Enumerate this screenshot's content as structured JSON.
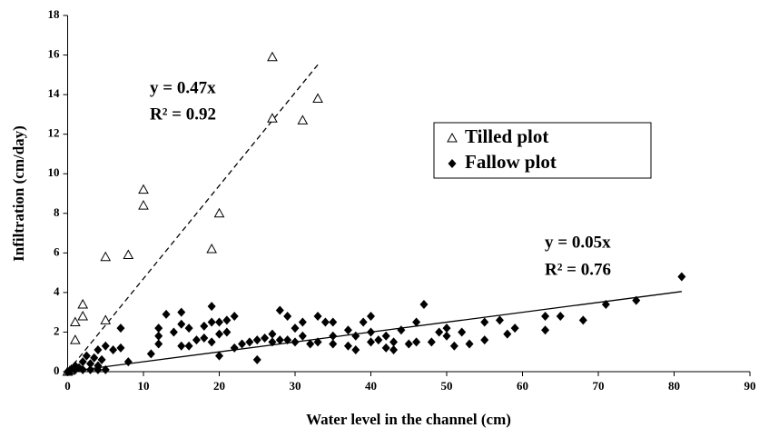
{
  "chart_data": {
    "type": "scatter",
    "x_label": "Water level in the channel (cm)",
    "y_label": "Infiltration (cm/day)",
    "xlim": [
      0,
      90
    ],
    "xticks": [
      0,
      10,
      20,
      30,
      40,
      50,
      60,
      70,
      80,
      90
    ],
    "ylim": [
      0,
      18
    ],
    "yticks": [
      0,
      2,
      4,
      6,
      8,
      10,
      12,
      14,
      16,
      18
    ],
    "grid": false,
    "legend": "right",
    "series": [
      {
        "name": "Tilled plot",
        "marker": "triangle-open",
        "color": "#000000",
        "x": [
          0,
          0.3,
          0.5,
          1,
          1,
          2,
          2,
          5,
          5,
          8,
          10,
          10,
          19,
          20,
          27,
          27,
          31,
          33
        ],
        "values": [
          0,
          0.05,
          0.1,
          1.6,
          2.5,
          2.8,
          3.4,
          2.6,
          5.8,
          5.9,
          8.4,
          9.2,
          6.2,
          8.0,
          12.8,
          15.9,
          12.7,
          13.8
        ]
      },
      {
        "name": "Fallow plot",
        "marker": "diamond",
        "color": "#000000",
        "x": [
          0,
          0.3,
          0.5,
          1,
          1,
          1.5,
          2,
          2,
          2.5,
          3,
          3,
          3.5,
          4,
          4,
          4,
          4.5,
          5,
          5,
          6,
          7,
          7,
          8,
          11,
          12,
          12,
          12,
          13,
          14,
          15,
          15,
          15,
          16,
          16,
          17,
          18,
          18,
          19,
          19,
          19,
          20,
          20,
          20,
          21,
          21,
          22,
          22,
          23,
          24,
          25,
          25,
          26,
          27,
          27,
          28,
          28,
          29,
          29,
          30,
          30,
          31,
          31,
          32,
          33,
          33,
          34,
          35,
          35,
          35,
          37,
          37,
          38,
          38,
          39,
          40,
          40,
          40,
          41,
          42,
          42,
          43,
          43,
          44,
          45,
          46,
          46,
          47,
          48,
          49,
          50,
          50,
          51,
          52,
          53,
          55,
          55,
          57,
          58,
          59,
          63,
          63,
          65,
          68,
          71,
          75,
          81
        ],
        "values": [
          0,
          0.05,
          0.1,
          0.1,
          0.3,
          0.2,
          0.1,
          0.5,
          0.8,
          0.1,
          0.4,
          0.7,
          0.1,
          0.3,
          1.1,
          0.6,
          0.1,
          1.3,
          1.1,
          1.2,
          2.2,
          0.5,
          0.9,
          1.4,
          1.8,
          2.2,
          2.9,
          2.0,
          1.3,
          2.4,
          3.0,
          1.3,
          2.2,
          1.6,
          1.7,
          2.3,
          1.5,
          2.5,
          3.3,
          0.8,
          1.9,
          2.5,
          2.0,
          2.6,
          1.2,
          2.8,
          1.4,
          1.5,
          0.6,
          1.6,
          1.7,
          1.5,
          1.9,
          1.6,
          3.1,
          1.6,
          2.8,
          1.5,
          2.2,
          1.8,
          2.5,
          1.4,
          1.5,
          2.8,
          2.5,
          1.4,
          1.8,
          2.5,
          2.1,
          1.3,
          1.1,
          1.8,
          2.5,
          1.5,
          2.0,
          2.8,
          1.6,
          1.2,
          1.8,
          1.1,
          1.5,
          2.1,
          1.4,
          1.5,
          2.5,
          3.4,
          1.5,
          2.0,
          1.8,
          2.2,
          1.3,
          2.0,
          1.4,
          1.6,
          2.5,
          2.6,
          1.9,
          2.2,
          2.1,
          2.8,
          2.8,
          2.6,
          3.4,
          3.6,
          4.8
        ]
      }
    ],
    "trendlines": [
      {
        "slope": 0.47,
        "x": [
          0,
          33
        ],
        "style": "dashed",
        "equation": "y = 0.47x",
        "r2": "R² = 0.92"
      },
      {
        "slope": 0.05,
        "x": [
          0,
          81
        ],
        "style": "solid",
        "equation": "y = 0.05x",
        "r2": "R² = 0.76"
      }
    ]
  }
}
